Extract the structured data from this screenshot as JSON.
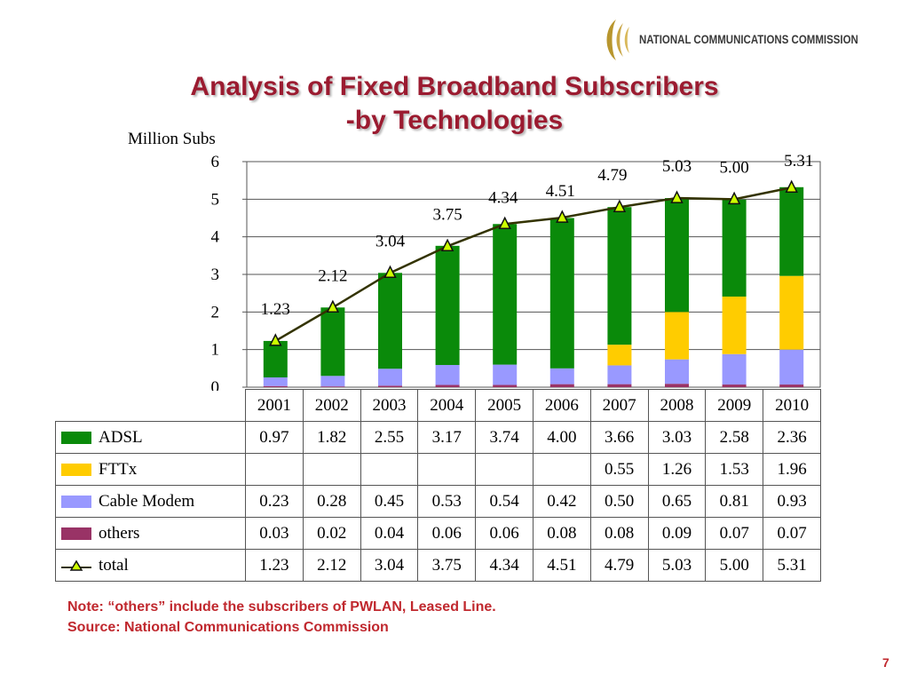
{
  "header": {
    "org_name": "NATIONAL COMMUNICATIONS COMMISSION",
    "title_line1": "Analysis of Fixed Broadband Subscribers",
    "title_line2": "-by Technologies"
  },
  "chart_data": {
    "type": "bar",
    "stacked": true,
    "title": "Analysis of Fixed Broadband Subscribers -by Technologies",
    "ylabel": "Million Subs",
    "xlabel": "",
    "ylim": [
      0,
      6
    ],
    "yticks": [
      0,
      1,
      2,
      3,
      4,
      5,
      6
    ],
    "grid": true,
    "legend": "table-left",
    "categories": [
      "2001",
      "2002",
      "2003",
      "2004",
      "2005",
      "2006",
      "2007",
      "2008",
      "2009",
      "2010"
    ],
    "series": [
      {
        "name": "ADSL",
        "color": "#0a8a0a",
        "values": [
          0.97,
          1.82,
          2.55,
          3.17,
          3.74,
          4.0,
          3.66,
          3.03,
          2.58,
          2.36
        ],
        "labels": [
          "0.97",
          "1.82",
          "2.55",
          "3.17",
          "3.74",
          "4.00",
          "3.66",
          "3.03",
          "2.58",
          "2.36"
        ]
      },
      {
        "name": "FTTx",
        "color": "#ffcc00",
        "values": [
          null,
          null,
          null,
          null,
          null,
          null,
          0.55,
          1.26,
          1.53,
          1.96
        ],
        "labels": [
          "",
          "",
          "",
          "",
          "",
          "",
          "0.55",
          "1.26",
          "1.53",
          "1.96"
        ]
      },
      {
        "name": "Cable Modem",
        "color": "#9999ff",
        "values": [
          0.23,
          0.28,
          0.45,
          0.53,
          0.54,
          0.42,
          0.5,
          0.65,
          0.81,
          0.93
        ],
        "labels": [
          "0.23",
          "0.28",
          "0.45",
          "0.53",
          "0.54",
          "0.42",
          "0.50",
          "0.65",
          "0.81",
          "0.93"
        ]
      },
      {
        "name": "others",
        "color": "#993366",
        "values": [
          0.03,
          0.02,
          0.04,
          0.06,
          0.06,
          0.08,
          0.08,
          0.09,
          0.07,
          0.07
        ],
        "labels": [
          "0.03",
          "0.02",
          "0.04",
          "0.06",
          "0.06",
          "0.08",
          "0.08",
          "0.09",
          "0.07",
          "0.07"
        ]
      }
    ],
    "total": {
      "name": "total",
      "type": "line",
      "color": "#333300",
      "marker": "triangle",
      "marker_color": "#111111",
      "marker_fill": "#ccff00",
      "values": [
        1.23,
        2.12,
        3.04,
        3.75,
        4.34,
        4.51,
        4.79,
        5.03,
        5.0,
        5.31
      ],
      "labels": [
        "1.23",
        "2.12",
        "3.04",
        "3.75",
        "4.34",
        "4.51",
        "4.79",
        "5.03",
        "5.00",
        "5.31"
      ]
    }
  },
  "notes": {
    "note": "Note: “others” include the subscribers of PWLAN, Leased Line.",
    "source": "Source: National Communications Commission"
  },
  "page_number": "7",
  "colors": {
    "title": "#9b1b30",
    "note": "#c0282e"
  }
}
